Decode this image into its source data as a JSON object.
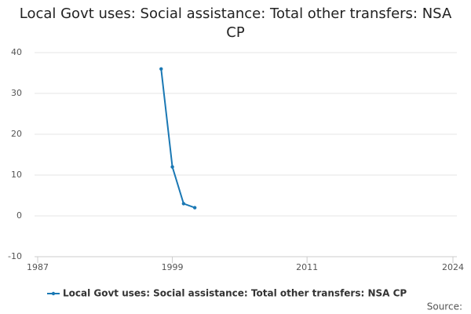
{
  "chart_data": {
    "type": "line",
    "title": "Local Govt uses: Social assistance: Total other transfers: NSA CP",
    "x": [
      1998,
      1999,
      2000,
      2001
    ],
    "series": [
      {
        "name": "Local Govt uses: Social assistance: Total other transfers: NSA CP",
        "color": "#1a78b4",
        "values": [
          36,
          12,
          3,
          2
        ]
      }
    ],
    "xlim": [
      1987,
      2024
    ],
    "xticks": [
      1987,
      1999,
      2011,
      2024
    ],
    "ylim": [
      -10,
      40
    ],
    "yticks": [
      -10,
      0,
      10,
      20,
      30,
      40
    ],
    "grid": true,
    "legend": "bottom",
    "source_label": "Source:"
  }
}
